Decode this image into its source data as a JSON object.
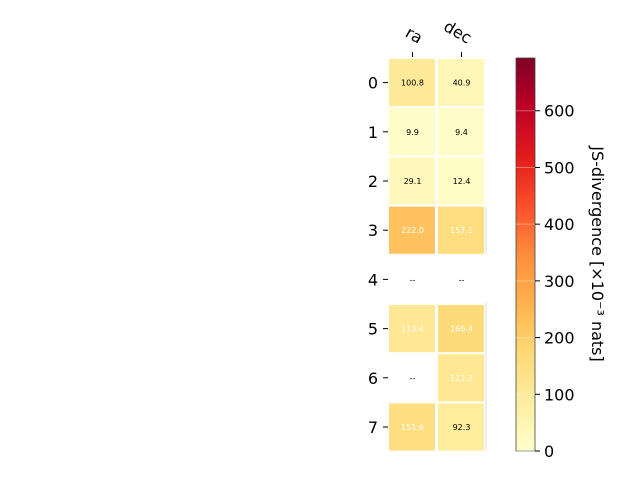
{
  "chart_data": {
    "type": "heatmap",
    "columns": [
      "ra",
      "dec"
    ],
    "rows": [
      "0",
      "1",
      "2",
      "3",
      "4",
      "5",
      "6",
      "7"
    ],
    "values": [
      [
        100.8,
        40.9
      ],
      [
        9.9,
        9.4
      ],
      [
        29.1,
        12.4
      ],
      [
        222.0,
        157.1
      ],
      [
        null,
        null
      ],
      [
        113.4,
        166.4
      ],
      [
        null,
        111.2
      ],
      [
        151.6,
        92.3
      ]
    ],
    "cell_labels": [
      [
        "100.8",
        "40.9"
      ],
      [
        "9.9",
        "9.4"
      ],
      [
        "29.1",
        "12.4"
      ],
      [
        "222.0",
        "157.1"
      ],
      [
        "--",
        "--"
      ],
      [
        "113.4",
        "166.4"
      ],
      [
        "--",
        "111.2"
      ],
      [
        "151.6",
        "92.3"
      ]
    ],
    "colorbar": {
      "label": "JS-divergence [×10⁻³ nats]",
      "range": [
        0,
        693
      ],
      "ticks": [
        0,
        100,
        200,
        300,
        400,
        500,
        600
      ],
      "colormap": "YlOrRd"
    }
  }
}
